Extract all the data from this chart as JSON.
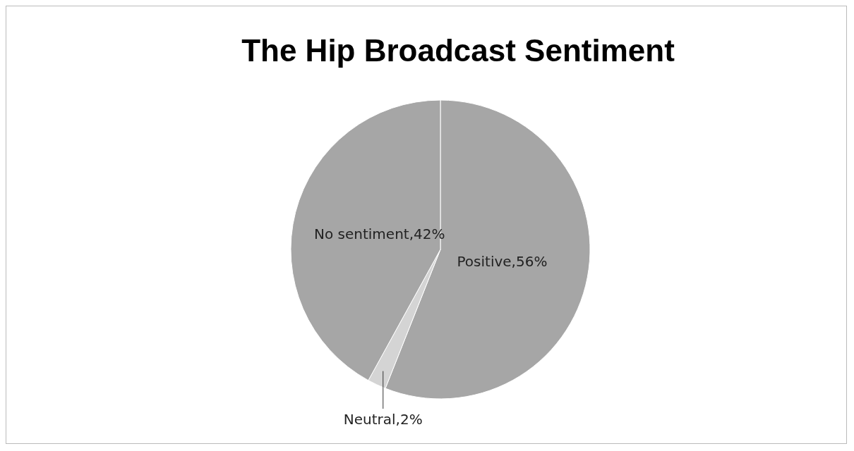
{
  "chart_data": {
    "type": "pie",
    "title": "The Hip Broadcast Sentiment",
    "categories": [
      "Positive",
      "Neutral",
      "No sentiment"
    ],
    "values": [
      56,
      2,
      42
    ],
    "colors": [
      "#a6a6a6",
      "#d4d4d4",
      "#a6a6a6"
    ],
    "value_labels": [
      "56%",
      "2%",
      "42%"
    ],
    "legend": false
  }
}
